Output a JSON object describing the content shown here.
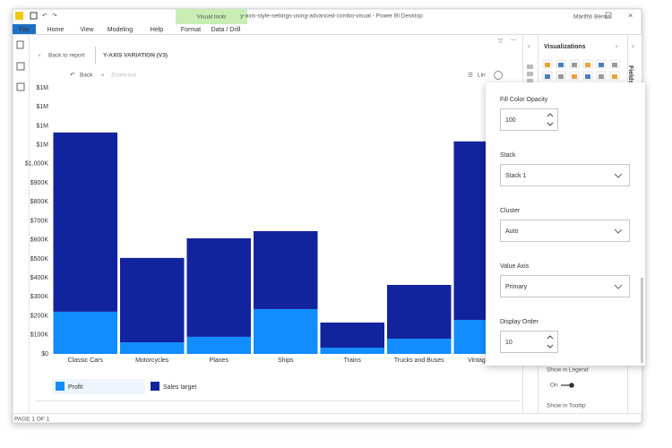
{
  "window": {
    "title": "y-axis-style-settings-using-advanced-combo-visual - Power BI Desktop",
    "user": "Mārtiņš Bēriņš"
  },
  "ribbon": {
    "context_group": "Visual tools",
    "tabs": [
      "File",
      "Home",
      "View",
      "Modeling",
      "Help",
      "Format",
      "Data / Drill"
    ]
  },
  "report": {
    "back": "Back to report",
    "visual_title": "Y-AXIS VARIATION (V3)",
    "drill_back": "Back",
    "zoom_out": "Zoom-out",
    "line_label": "Lin"
  },
  "chart_data": {
    "type": "bar",
    "stacked": true,
    "grid": false,
    "categories": [
      "Classic Cars",
      "Motorcycles",
      "Planes",
      "Ships",
      "Trains",
      "Trucks and Buses",
      "Vintage Cars"
    ],
    "series": [
      {
        "name": "Profit",
        "color": "#118DFF",
        "values": [
          222000,
          61000,
          90000,
          236000,
          33000,
          80000,
          179000
        ]
      },
      {
        "name": "Sales target",
        "color": "#12239E",
        "values": [
          943000,
          444000,
          518000,
          410000,
          132000,
          283000,
          939000
        ]
      }
    ],
    "ylim": [
      0,
      1400000
    ],
    "yticks": [
      {
        "value": 0,
        "label": "$0"
      },
      {
        "value": 100000,
        "label": "$100K"
      },
      {
        "value": 200000,
        "label": "$200K"
      },
      {
        "value": 300000,
        "label": "$300K"
      },
      {
        "value": 400000,
        "label": "$400K"
      },
      {
        "value": 500000,
        "label": "$500K"
      },
      {
        "value": 600000,
        "label": "$600K"
      },
      {
        "value": 700000,
        "label": "$700K"
      },
      {
        "value": 800000,
        "label": "$800K"
      },
      {
        "value": 900000,
        "label": "$900K"
      },
      {
        "value": 1000000,
        "label": "$1,000K"
      },
      {
        "value": 1100000,
        "label": "$1M"
      },
      {
        "value": 1200000,
        "label": "$1M"
      },
      {
        "value": 1300000,
        "label": "$1M"
      },
      {
        "value": 1400000,
        "label": "$1M"
      }
    ]
  },
  "visualizations_pane": {
    "title": "Visualizations",
    "fields_tab": "Fields",
    "show_in_legend": "Show in Legend",
    "toggle": "On",
    "show_in_tooltip": "Show in Tooltip"
  },
  "format_panel": {
    "fields": [
      {
        "label": "Fill Color Opacity",
        "value": 100,
        "control": "spinner"
      },
      {
        "label": "Stack",
        "value": "Stack 1",
        "control": "dropdown"
      },
      {
        "label": "Cluster",
        "value": "Auto",
        "control": "dropdown"
      },
      {
        "label": "Value Axis",
        "value": "Primary",
        "control": "dropdown"
      },
      {
        "label": "Display Order",
        "value": 10,
        "control": "spinner"
      }
    ]
  },
  "status": "PAGE 1 OF 1"
}
